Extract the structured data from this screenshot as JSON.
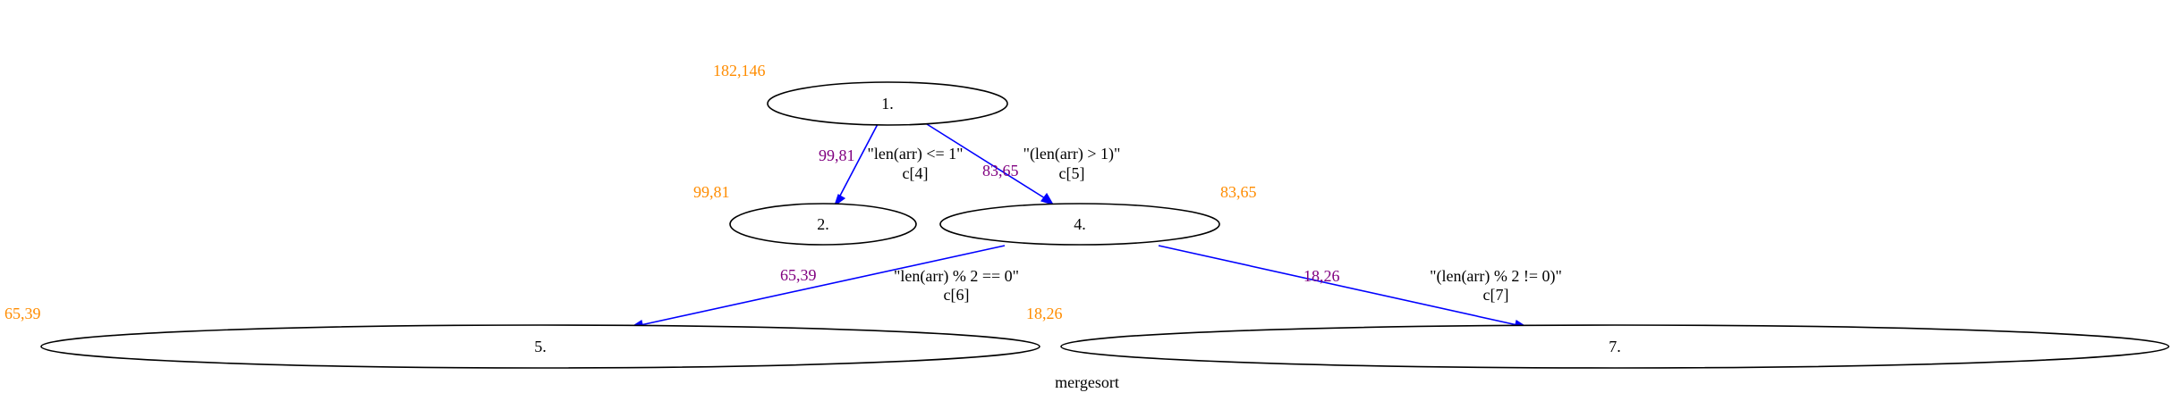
{
  "graph": {
    "label": "mergesort"
  },
  "colors": {
    "edge": "#0000ff",
    "node_stroke": "#000000",
    "node_count": "#ff8c00",
    "edge_weight": "#800080",
    "text": "#000000"
  },
  "nodes": [
    {
      "id": "n1",
      "label": "1.",
      "count": "182,146"
    },
    {
      "id": "n2",
      "label": "2.",
      "count": "99,81"
    },
    {
      "id": "n4",
      "label": "4.",
      "count": "83,65"
    },
    {
      "id": "n5",
      "label": "5.",
      "count": "65,39"
    },
    {
      "id": "n7",
      "label": "7.",
      "count": "18,26"
    }
  ],
  "edges": [
    {
      "id": "e1",
      "from": "n1",
      "to": "n2",
      "condition": "\"len(arr) <= 1\"",
      "clause": "c[4]",
      "weight": "99,81"
    },
    {
      "id": "e2",
      "from": "n1",
      "to": "n4",
      "condition": "\"(len(arr) > 1)\"",
      "clause": "c[5]",
      "weight": "83,65"
    },
    {
      "id": "e3",
      "from": "n4",
      "to": "n5",
      "condition": "\"len(arr) % 2 == 0\"",
      "clause": "c[6]",
      "weight": "65,39"
    },
    {
      "id": "e4",
      "from": "n4",
      "to": "n7",
      "condition": "\"(len(arr) % 2 != 0)\"",
      "clause": "c[7]",
      "weight": "18,26"
    }
  ]
}
